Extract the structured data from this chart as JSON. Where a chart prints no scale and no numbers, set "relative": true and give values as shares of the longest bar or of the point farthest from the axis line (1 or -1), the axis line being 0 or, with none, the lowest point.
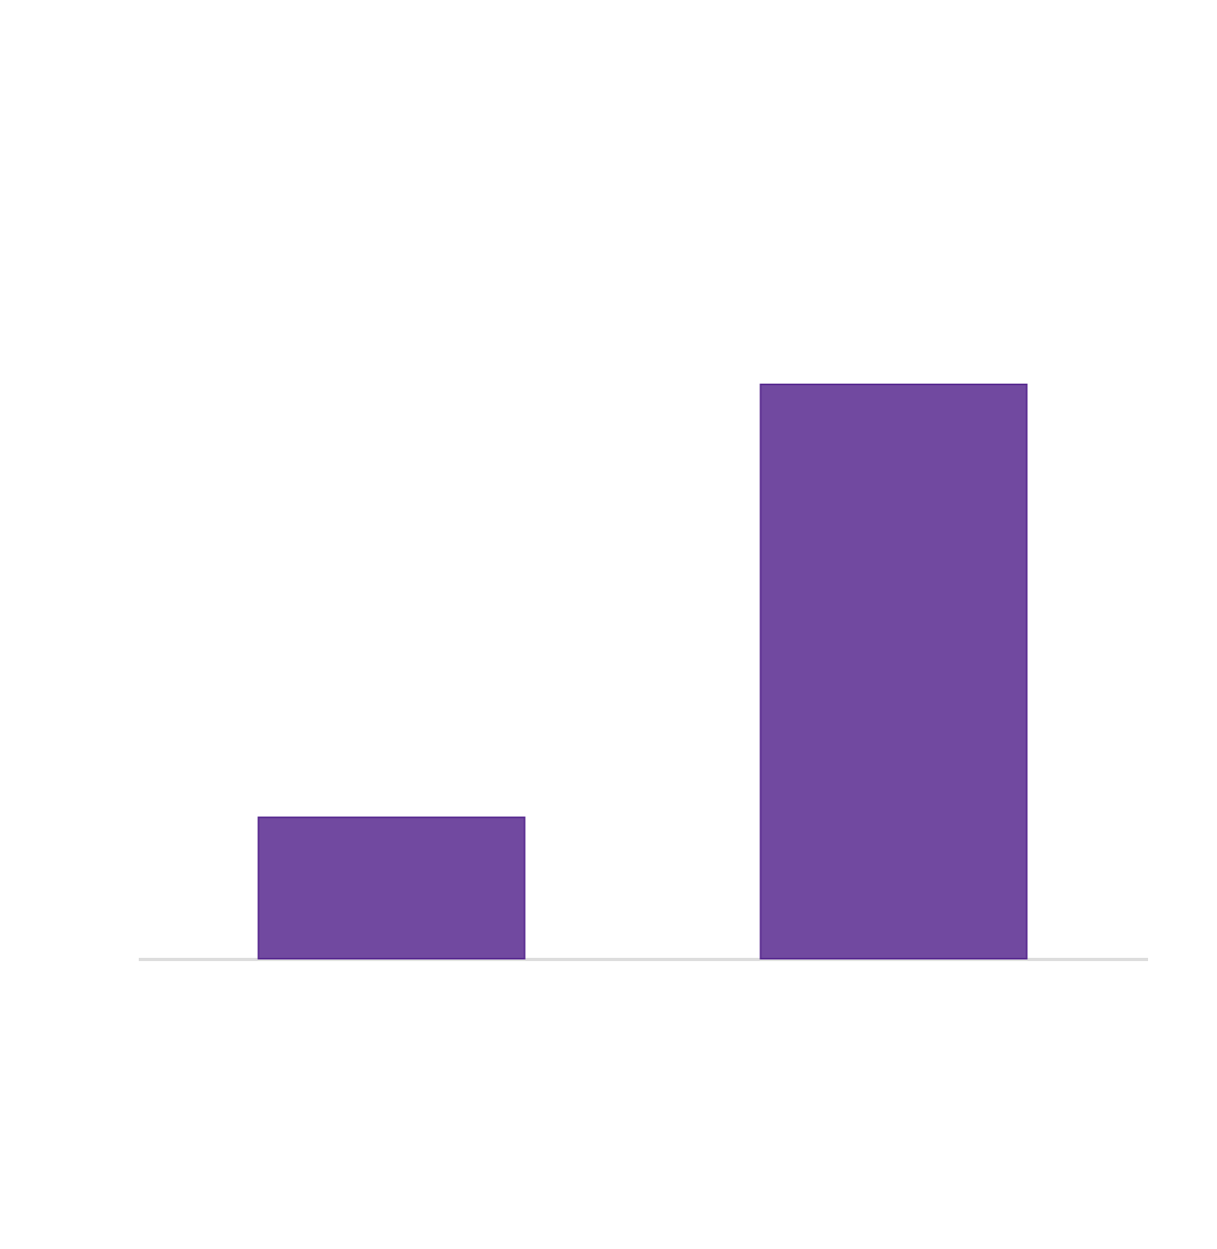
{
  "chart_data": {
    "type": "bar",
    "relative": true,
    "categories": [
      null,
      null
    ],
    "values": [
      0.246,
      1
    ],
    "color": "#7149a0"
  }
}
